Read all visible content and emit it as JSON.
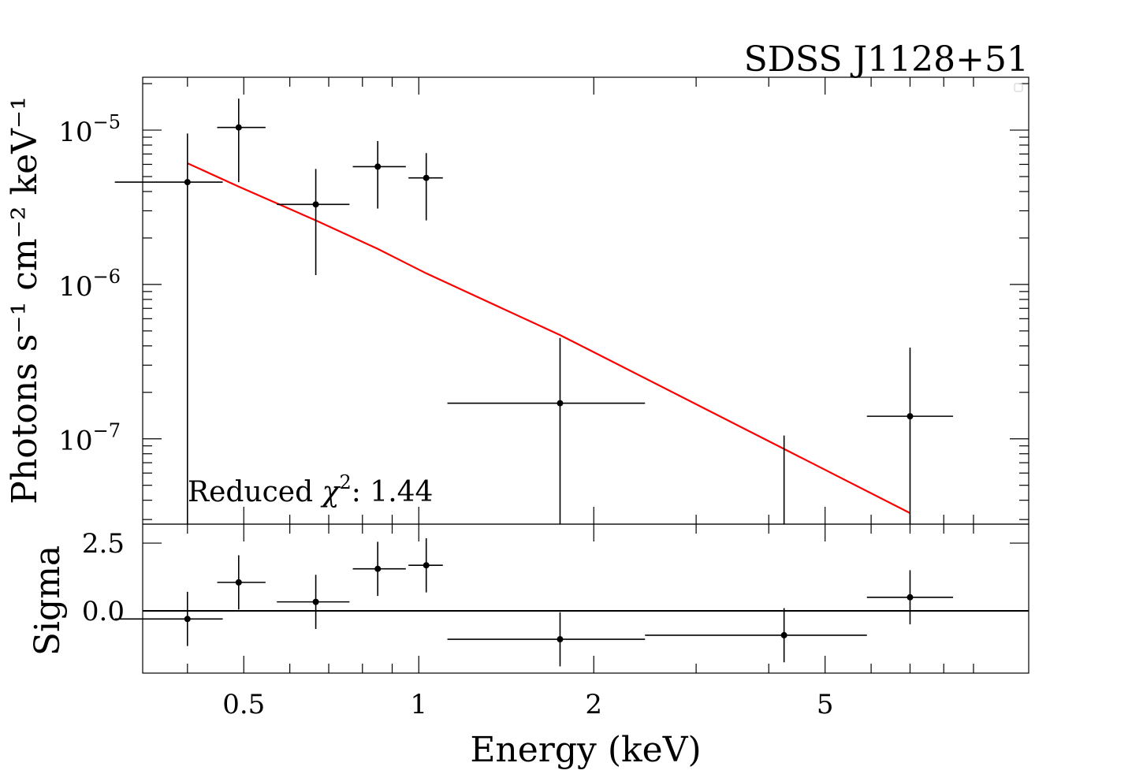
{
  "chart_data": [
    {
      "type": "scatter",
      "title": "SDSS J1128+51",
      "ylabel": "Photons s⁻¹ cm⁻² keV⁻¹",
      "xlabel": "",
      "xscale": "log",
      "yscale": "log",
      "xlim": [
        0.335,
        11.2
      ],
      "ylim": [
        2.8e-08,
        2.2e-05
      ],
      "yticks": [
        1e-07,
        1e-06,
        1e-05
      ],
      "ytick_labels": [
        {
          "base": "10",
          "exp": "−7"
        },
        {
          "base": "10",
          "exp": "−6"
        },
        {
          "base": "10",
          "exp": "−5"
        }
      ],
      "annotation": {
        "text": "Reduced ",
        "symbol": "χ",
        "sup": "2",
        "value": ": 1.44"
      },
      "grid": false,
      "legend": "top-right (empty)",
      "series": [
        {
          "kind": "data",
          "color": "#000000",
          "points": [
            {
              "x": 0.4,
              "xlo": 0.3,
              "xhi": 0.46,
              "y": 4.6e-06,
              "ylo": 2.8e-08,
              "yhi": 9.5e-06
            },
            {
              "x": 0.49,
              "xlo": 0.45,
              "xhi": 0.545,
              "y": 1.04e-05,
              "ylo": 4.6e-06,
              "yhi": 1.6e-05
            },
            {
              "x": 0.665,
              "xlo": 0.57,
              "xhi": 0.76,
              "y": 3.3e-06,
              "ylo": 1.15e-06,
              "yhi": 5.6e-06
            },
            {
              "x": 0.85,
              "xlo": 0.77,
              "xhi": 0.95,
              "y": 5.8e-06,
              "ylo": 3.1e-06,
              "yhi": 8.5e-06
            },
            {
              "x": 1.03,
              "xlo": 0.96,
              "xhi": 1.1,
              "y": 4.9e-06,
              "ylo": 2.6e-06,
              "yhi": 7.1e-06
            },
            {
              "x": 1.75,
              "xlo": 1.12,
              "xhi": 2.45,
              "y": 1.7e-07,
              "ylo": 2.8e-08,
              "yhi": 4.5e-07
            },
            {
              "x": 4.25,
              "xlo": 4.25,
              "xhi": 4.25,
              "y": null,
              "ylo": 2.8e-08,
              "yhi": 1.05e-07
            },
            {
              "x": 7.0,
              "xlo": 5.9,
              "xhi": 8.3,
              "y": 1.4e-07,
              "ylo": 2.8e-08,
              "yhi": 3.9e-07
            }
          ]
        },
        {
          "kind": "model",
          "color": "#ff0000",
          "x": [
            0.4,
            0.49,
            0.665,
            0.85,
            1.03,
            1.75,
            4.25,
            7.0
          ],
          "y": [
            6.1e-06,
            4.3e-06,
            2.6e-06,
            1.7e-06,
            1.18e-06,
            4.7e-07,
            8.6e-08,
            3.3e-08
          ]
        }
      ]
    },
    {
      "type": "scatter",
      "xlabel": "Energy (keV)",
      "ylabel": "Sigma",
      "xscale": "log",
      "xlim": [
        0.335,
        11.2
      ],
      "ylim": [
        -2.3,
        3.2
      ],
      "xticks": [
        0.5,
        1,
        2,
        5
      ],
      "xtick_labels": [
        "0.5",
        "1",
        "2",
        "5"
      ],
      "yticks": [
        0.0,
        2.5
      ],
      "ytick_labels": [
        "0.0",
        "2.5"
      ],
      "zero_line": 0,
      "grid": false,
      "series": [
        {
          "kind": "residuals",
          "color": "#000000",
          "points": [
            {
              "x": 0.4,
              "xlo": 0.3,
              "xhi": 0.46,
              "y": -0.3,
              "ylo": -1.3,
              "yhi": 0.7
            },
            {
              "x": 0.49,
              "xlo": 0.45,
              "xhi": 0.545,
              "y": 1.05,
              "ylo": 0.05,
              "yhi": 2.05
            },
            {
              "x": 0.665,
              "xlo": 0.57,
              "xhi": 0.76,
              "y": 0.33,
              "ylo": -0.67,
              "yhi": 1.33
            },
            {
              "x": 0.85,
              "xlo": 0.77,
              "xhi": 0.95,
              "y": 1.55,
              "ylo": 0.55,
              "yhi": 2.55
            },
            {
              "x": 1.03,
              "xlo": 0.96,
              "xhi": 1.1,
              "y": 1.68,
              "ylo": 0.68,
              "yhi": 2.68
            },
            {
              "x": 1.75,
              "xlo": 1.12,
              "xhi": 2.45,
              "y": -1.05,
              "ylo": -2.05,
              "yhi": -0.05
            },
            {
              "x": 4.25,
              "xlo": 2.45,
              "xhi": 5.9,
              "y": -0.9,
              "ylo": -1.9,
              "yhi": 0.1
            },
            {
              "x": 7.0,
              "xlo": 5.9,
              "xhi": 8.3,
              "y": 0.5,
              "ylo": -0.5,
              "yhi": 1.5
            }
          ]
        }
      ]
    }
  ]
}
